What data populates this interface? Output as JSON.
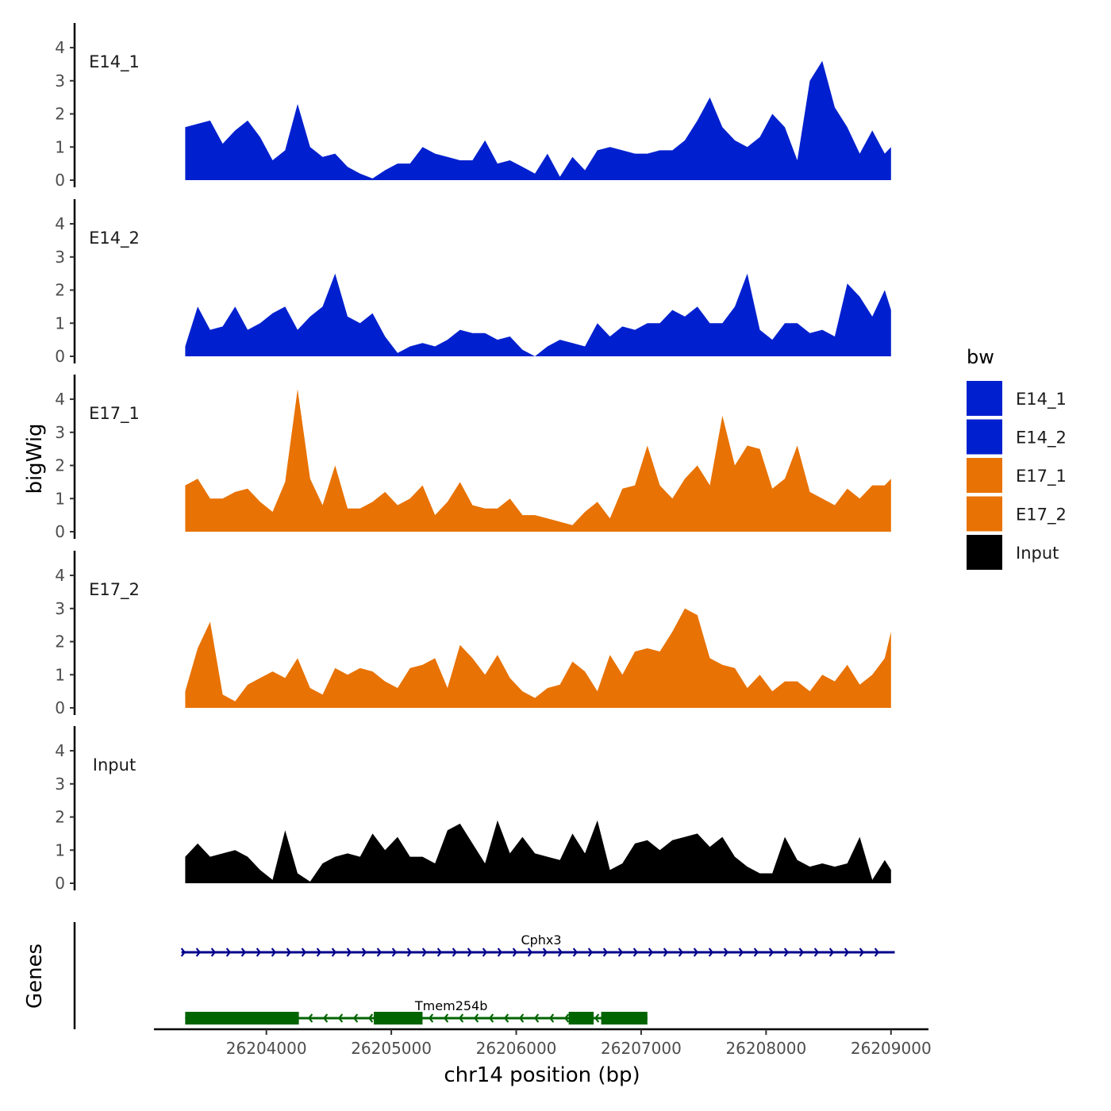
{
  "chart_data": {
    "type": "area",
    "title": "",
    "xlabel": "chr14 position (bp)",
    "ylabel": "bigWig",
    "genes_label": "Genes",
    "xlim": [
      26203100,
      26209300
    ],
    "ylim": [
      0,
      4.6
    ],
    "x_ticks": [
      26204000,
      26205000,
      26206000,
      26207000,
      26208000,
      26209000
    ],
    "y_ticks": [
      0,
      1,
      2,
      3,
      4
    ],
    "legend": {
      "title": "bw",
      "entries": [
        {
          "name": "E14_1",
          "color": "#0020CF"
        },
        {
          "name": "E14_2",
          "color": "#0020CF"
        },
        {
          "name": "E17_1",
          "color": "#E87203"
        },
        {
          "name": "E17_2",
          "color": "#E87203"
        },
        {
          "name": "Input",
          "color": "#000000"
        }
      ]
    },
    "x": [
      26203350,
      26203450,
      26203550,
      26203650,
      26203750,
      26203850,
      26203950,
      26204050,
      26204150,
      26204250,
      26204350,
      26204450,
      26204550,
      26204650,
      26204750,
      26204850,
      26204950,
      26205050,
      26205150,
      26205250,
      26205350,
      26205450,
      26205550,
      26205650,
      26205750,
      26205850,
      26205950,
      26206050,
      26206150,
      26206250,
      26206350,
      26206450,
      26206550,
      26206650,
      26206750,
      26206850,
      26206950,
      26207050,
      26207150,
      26207250,
      26207350,
      26207450,
      26207550,
      26207650,
      26207750,
      26207850,
      26207950,
      26208050,
      26208150,
      26208250,
      26208350,
      26208450,
      26208550,
      26208650,
      26208750,
      26208850,
      26208950,
      26209000
    ],
    "series": [
      {
        "name": "E14_1",
        "color": "#0020CF",
        "values": [
          1.6,
          1.7,
          1.8,
          1.1,
          1.5,
          1.8,
          1.3,
          0.6,
          0.9,
          2.3,
          1.0,
          0.7,
          0.8,
          0.4,
          0.2,
          0.05,
          0.3,
          0.5,
          0.5,
          1.0,
          0.8,
          0.7,
          0.6,
          0.6,
          1.2,
          0.5,
          0.6,
          0.4,
          0.2,
          0.8,
          0.1,
          0.7,
          0.3,
          0.9,
          1.0,
          0.9,
          0.8,
          0.8,
          0.9,
          0.9,
          1.2,
          1.8,
          2.5,
          1.6,
          1.2,
          1.0,
          1.3,
          2.0,
          1.6,
          0.6,
          3.0,
          3.6,
          2.2,
          1.6,
          0.8,
          1.5,
          0.8,
          1.0
        ]
      },
      {
        "name": "E14_2",
        "color": "#0020CF",
        "values": [
          0.3,
          1.5,
          0.8,
          0.9,
          1.5,
          0.8,
          1.0,
          1.3,
          1.5,
          0.8,
          1.2,
          1.5,
          2.5,
          1.2,
          1.0,
          1.3,
          0.6,
          0.1,
          0.3,
          0.4,
          0.3,
          0.5,
          0.8,
          0.7,
          0.7,
          0.5,
          0.6,
          0.2,
          0.0,
          0.3,
          0.5,
          0.4,
          0.3,
          1.0,
          0.6,
          0.9,
          0.8,
          1.0,
          1.0,
          1.4,
          1.2,
          1.5,
          1.0,
          1.0,
          1.5,
          2.5,
          0.8,
          0.5,
          1.0,
          1.0,
          0.7,
          0.8,
          0.6,
          2.2,
          1.8,
          1.2,
          2.0,
          1.4
        ]
      },
      {
        "name": "E17_1",
        "color": "#E87203",
        "values": [
          1.4,
          1.6,
          1.0,
          1.0,
          1.2,
          1.3,
          0.9,
          0.6,
          1.5,
          4.3,
          1.6,
          0.8,
          2.0,
          0.7,
          0.7,
          0.9,
          1.2,
          0.8,
          1.0,
          1.4,
          0.5,
          0.9,
          1.5,
          0.8,
          0.7,
          0.7,
          1.0,
          0.5,
          0.5,
          0.4,
          0.3,
          0.2,
          0.6,
          0.9,
          0.4,
          1.3,
          1.4,
          2.6,
          1.4,
          1.0,
          1.6,
          2.0,
          1.4,
          3.5,
          2.0,
          2.6,
          2.5,
          1.3,
          1.6,
          2.6,
          1.2,
          1.0,
          0.8,
          1.3,
          1.0,
          1.4,
          1.4,
          1.6
        ]
      },
      {
        "name": "E17_2",
        "color": "#E87203",
        "values": [
          0.5,
          1.8,
          2.6,
          0.4,
          0.2,
          0.7,
          0.9,
          1.1,
          0.9,
          1.5,
          0.6,
          0.4,
          1.2,
          1.0,
          1.2,
          1.1,
          0.8,
          0.6,
          1.2,
          1.3,
          1.5,
          0.6,
          1.9,
          1.5,
          1.0,
          1.6,
          0.9,
          0.5,
          0.3,
          0.6,
          0.7,
          1.4,
          1.1,
          0.5,
          1.6,
          1.0,
          1.7,
          1.8,
          1.7,
          2.3,
          3.0,
          2.8,
          1.5,
          1.3,
          1.2,
          0.6,
          1.0,
          0.5,
          0.8,
          0.8,
          0.5,
          1.0,
          0.8,
          1.3,
          0.7,
          1.0,
          1.5,
          2.3
        ]
      },
      {
        "name": "Input",
        "color": "#000000",
        "values": [
          0.8,
          1.2,
          0.8,
          0.9,
          1.0,
          0.8,
          0.4,
          0.1,
          1.6,
          0.3,
          0.05,
          0.6,
          0.8,
          0.9,
          0.8,
          1.5,
          1.0,
          1.4,
          0.8,
          0.8,
          0.6,
          1.6,
          1.8,
          1.2,
          0.6,
          1.9,
          0.9,
          1.4,
          0.9,
          0.8,
          0.7,
          1.5,
          0.9,
          1.9,
          0.4,
          0.6,
          1.2,
          1.3,
          1.0,
          1.3,
          1.4,
          1.5,
          1.1,
          1.4,
          0.8,
          0.5,
          0.3,
          0.3,
          1.4,
          0.7,
          0.5,
          0.6,
          0.5,
          0.6,
          1.4,
          0.1,
          0.7,
          0.4
        ]
      }
    ],
    "genes": [
      {
        "name": "Cphx3",
        "start": 26203320,
        "end": 26209030,
        "strand": "+",
        "color": "#00008B",
        "exons": []
      },
      {
        "name": "Tmem254b",
        "start": 26203350,
        "end": 26207050,
        "strand": "-",
        "color": "#006400",
        "exons": [
          [
            26203350,
            26204260
          ],
          [
            26204860,
            26205250
          ],
          [
            26206420,
            26206620
          ],
          [
            26206680,
            26207050
          ]
        ]
      }
    ]
  }
}
